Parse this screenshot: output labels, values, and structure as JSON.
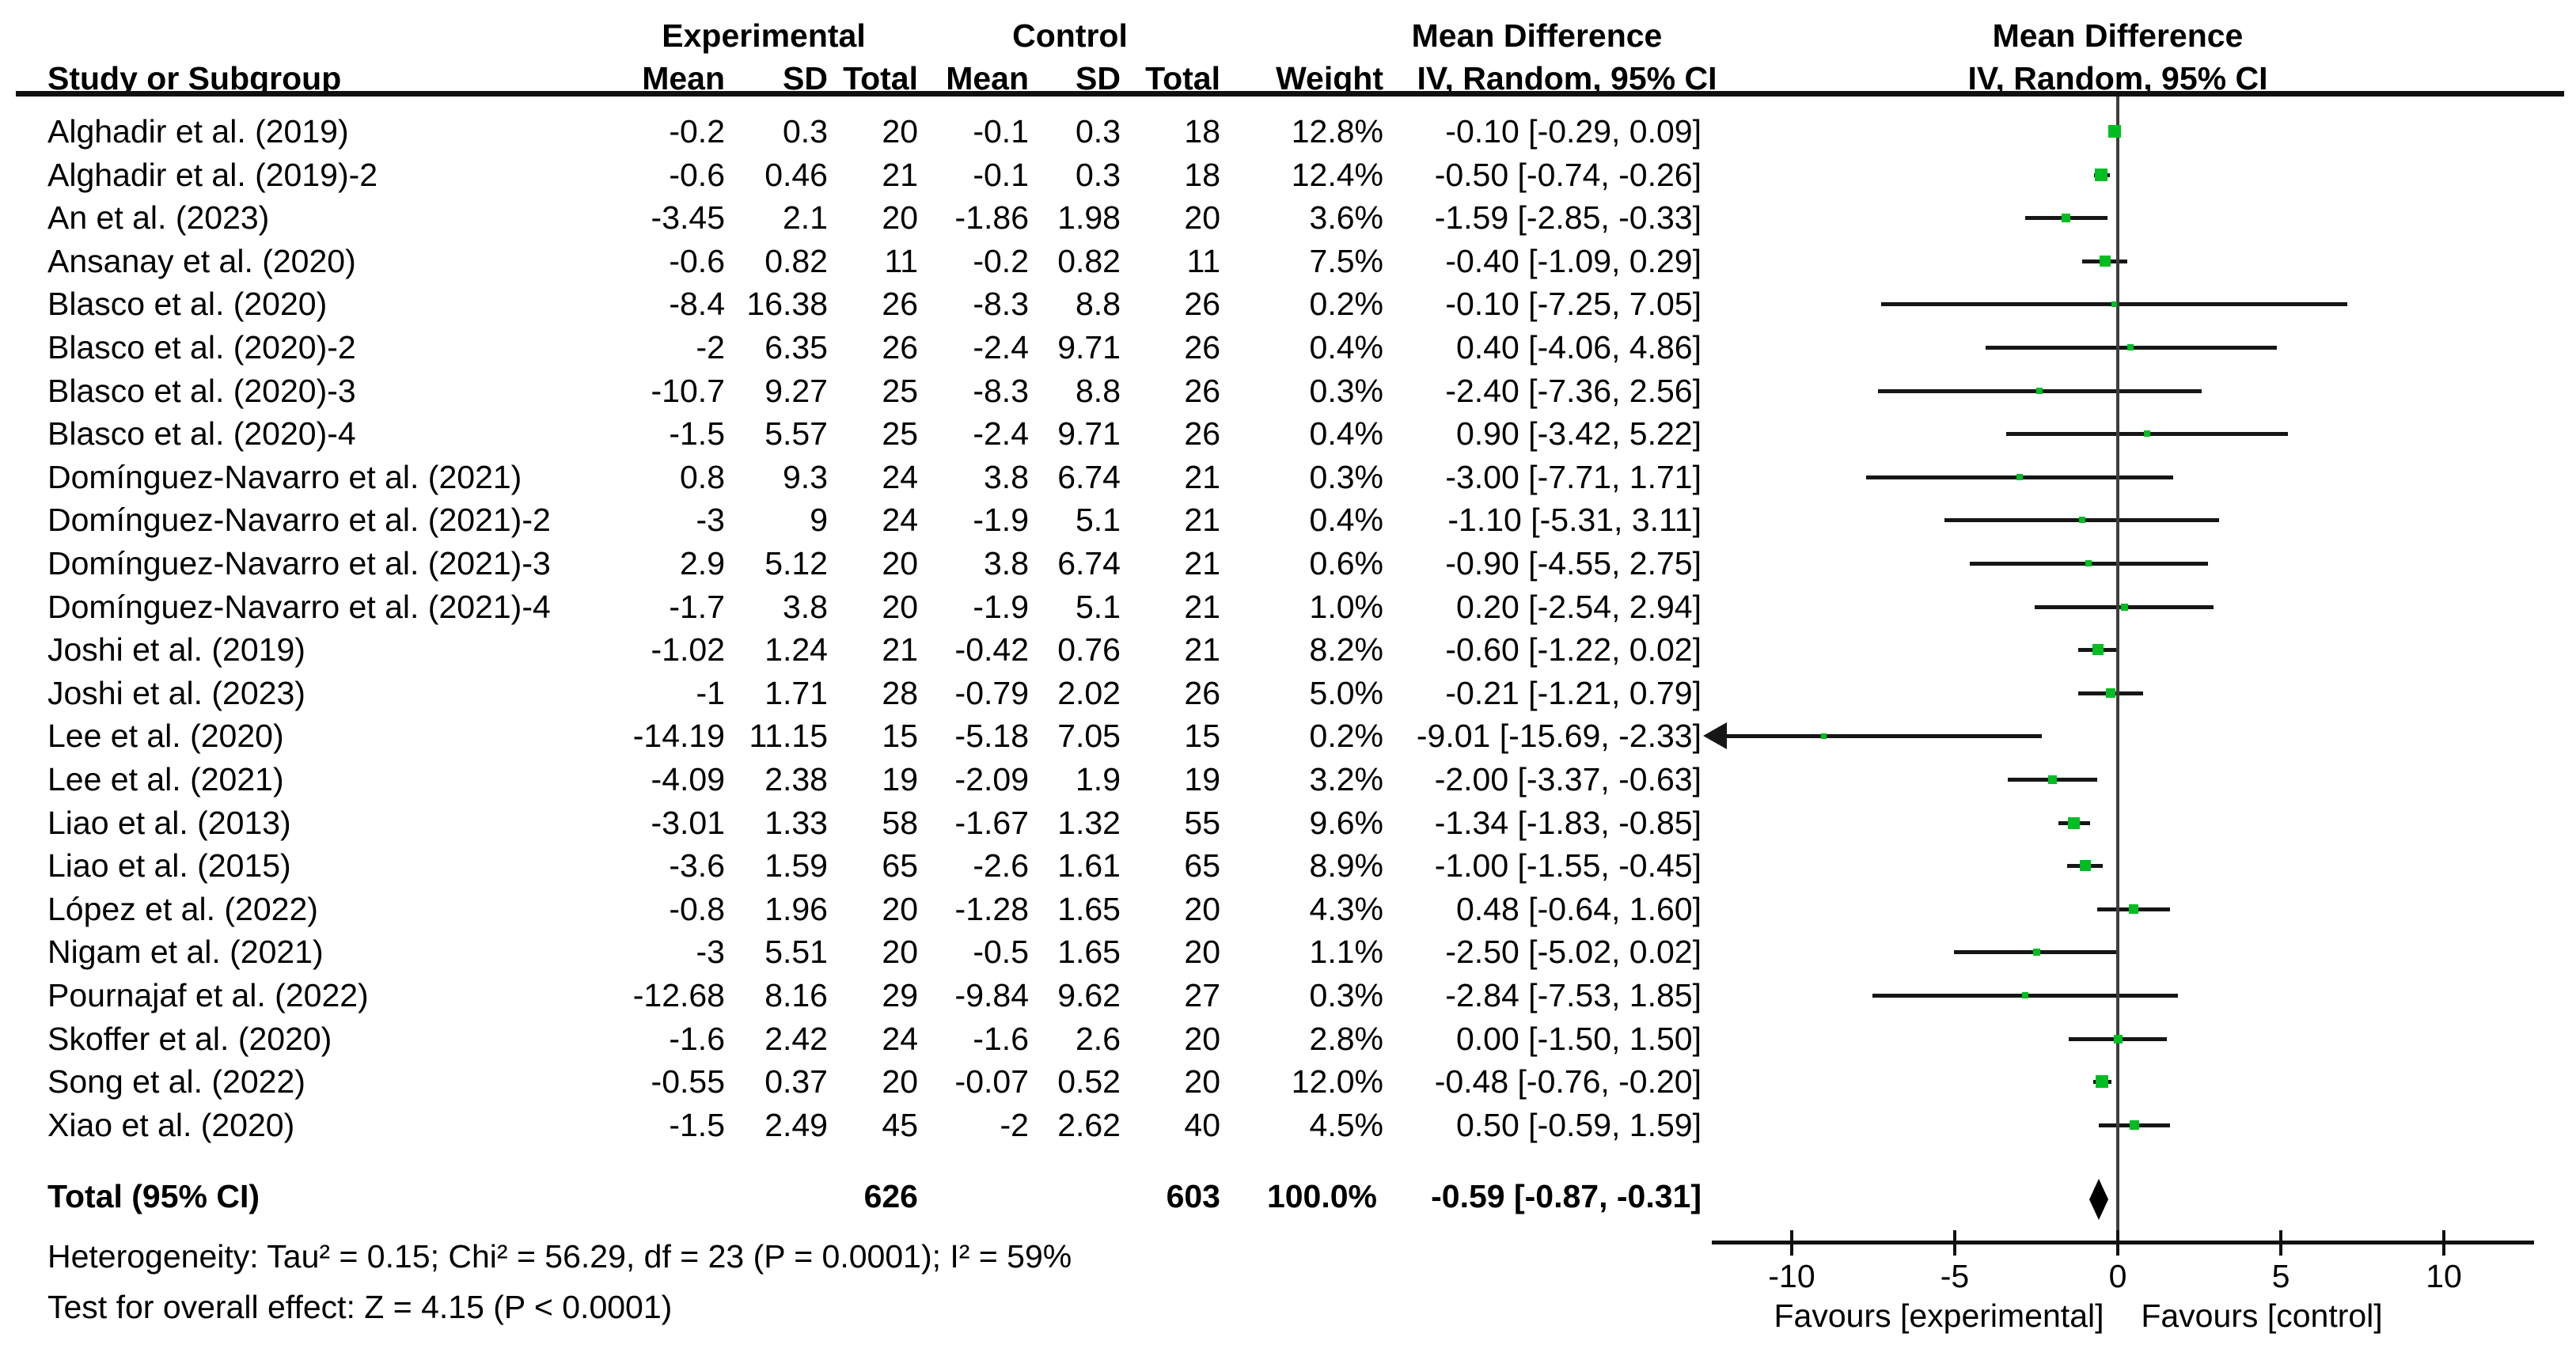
{
  "chart_data": {
    "type": "forest",
    "title_headers": {
      "experimental": "Experimental",
      "control": "Control",
      "mean_difference_left": "Mean Difference",
      "mean_difference_right": "Mean Difference",
      "study_or_subgroup": "Study or Subgroup",
      "iv_random_left": "IV, Random, 95% CI",
      "iv_random_right": "IV, Random, 95% CI"
    },
    "columns": [
      "Mean",
      "SD",
      "Total",
      "Mean",
      "SD",
      "Total",
      "Weight"
    ],
    "studies": [
      {
        "name": "Alghadir et al. (2019)",
        "mean_e": "-0.2",
        "sd_e": "0.3",
        "n_e": "20",
        "mean_c": "-0.1",
        "sd_c": "0.3",
        "n_c": "18",
        "weight": "12.8%",
        "ci_text": "-0.10 [-0.29, 0.09]",
        "md": -0.1,
        "lo": -0.29,
        "hi": 0.09
      },
      {
        "name": "Alghadir et al. (2019)-2",
        "mean_e": "-0.6",
        "sd_e": "0.46",
        "n_e": "21",
        "mean_c": "-0.1",
        "sd_c": "0.3",
        "n_c": "18",
        "weight": "12.4%",
        "ci_text": "-0.50 [-0.74, -0.26]",
        "md": -0.5,
        "lo": -0.74,
        "hi": -0.26
      },
      {
        "name": "An et al. (2023)",
        "mean_e": "-3.45",
        "sd_e": "2.1",
        "n_e": "20",
        "mean_c": "-1.86",
        "sd_c": "1.98",
        "n_c": "20",
        "weight": "3.6%",
        "ci_text": "-1.59 [-2.85, -0.33]",
        "md": -1.59,
        "lo": -2.85,
        "hi": -0.33
      },
      {
        "name": "Ansanay et al. (2020)",
        "mean_e": "-0.6",
        "sd_e": "0.82",
        "n_e": "11",
        "mean_c": "-0.2",
        "sd_c": "0.82",
        "n_c": "11",
        "weight": "7.5%",
        "ci_text": "-0.40 [-1.09, 0.29]",
        "md": -0.4,
        "lo": -1.09,
        "hi": 0.29
      },
      {
        "name": "Blasco et al. (2020)",
        "mean_e": "-8.4",
        "sd_e": "16.38",
        "n_e": "26",
        "mean_c": "-8.3",
        "sd_c": "8.8",
        "n_c": "26",
        "weight": "0.2%",
        "ci_text": "-0.10 [-7.25, 7.05]",
        "md": -0.1,
        "lo": -7.25,
        "hi": 7.05
      },
      {
        "name": "Blasco et al. (2020)-2",
        "mean_e": "-2",
        "sd_e": "6.35",
        "n_e": "26",
        "mean_c": "-2.4",
        "sd_c": "9.71",
        "n_c": "26",
        "weight": "0.4%",
        "ci_text": "0.40 [-4.06, 4.86]",
        "md": 0.4,
        "lo": -4.06,
        "hi": 4.86
      },
      {
        "name": "Blasco et al. (2020)-3",
        "mean_e": "-10.7",
        "sd_e": "9.27",
        "n_e": "25",
        "mean_c": "-8.3",
        "sd_c": "8.8",
        "n_c": "26",
        "weight": "0.3%",
        "ci_text": "-2.40 [-7.36, 2.56]",
        "md": -2.4,
        "lo": -7.36,
        "hi": 2.56
      },
      {
        "name": "Blasco et al. (2020)-4",
        "mean_e": "-1.5",
        "sd_e": "5.57",
        "n_e": "25",
        "mean_c": "-2.4",
        "sd_c": "9.71",
        "n_c": "26",
        "weight": "0.4%",
        "ci_text": "0.90 [-3.42, 5.22]",
        "md": 0.9,
        "lo": -3.42,
        "hi": 5.22
      },
      {
        "name": "Domínguez-Navarro et al. (2021)",
        "mean_e": "0.8",
        "sd_e": "9.3",
        "n_e": "24",
        "mean_c": "3.8",
        "sd_c": "6.74",
        "n_c": "21",
        "weight": "0.3%",
        "ci_text": "-3.00 [-7.71, 1.71]",
        "md": -3.0,
        "lo": -7.71,
        "hi": 1.71
      },
      {
        "name": "Domínguez-Navarro et al. (2021)-2",
        "mean_e": "-3",
        "sd_e": "9",
        "n_e": "24",
        "mean_c": "-1.9",
        "sd_c": "5.1",
        "n_c": "21",
        "weight": "0.4%",
        "ci_text": "-1.10 [-5.31, 3.11]",
        "md": -1.1,
        "lo": -5.31,
        "hi": 3.11
      },
      {
        "name": "Domínguez-Navarro et al. (2021)-3",
        "mean_e": "2.9",
        "sd_e": "5.12",
        "n_e": "20",
        "mean_c": "3.8",
        "sd_c": "6.74",
        "n_c": "21",
        "weight": "0.6%",
        "ci_text": "-0.90 [-4.55, 2.75]",
        "md": -0.9,
        "lo": -4.55,
        "hi": 2.75
      },
      {
        "name": "Domínguez-Navarro et al. (2021)-4",
        "mean_e": "-1.7",
        "sd_e": "3.8",
        "n_e": "20",
        "mean_c": "-1.9",
        "sd_c": "5.1",
        "n_c": "21",
        "weight": "1.0%",
        "ci_text": "0.20 [-2.54, 2.94]",
        "md": 0.2,
        "lo": -2.54,
        "hi": 2.94
      },
      {
        "name": "Joshi et al. (2019)",
        "mean_e": "-1.02",
        "sd_e": "1.24",
        "n_e": "21",
        "mean_c": "-0.42",
        "sd_c": "0.76",
        "n_c": "21",
        "weight": "8.2%",
        "ci_text": "-0.60 [-1.22, 0.02]",
        "md": -0.6,
        "lo": -1.22,
        "hi": 0.02
      },
      {
        "name": "Joshi et al. (2023)",
        "mean_e": "-1",
        "sd_e": "1.71",
        "n_e": "28",
        "mean_c": "-0.79",
        "sd_c": "2.02",
        "n_c": "26",
        "weight": "5.0%",
        "ci_text": "-0.21 [-1.21, 0.79]",
        "md": -0.21,
        "lo": -1.21,
        "hi": 0.79
      },
      {
        "name": "Lee et al. (2020)",
        "mean_e": "-14.19",
        "sd_e": "11.15",
        "n_e": "15",
        "mean_c": "-5.18",
        "sd_c": "7.05",
        "n_c": "15",
        "weight": "0.2%",
        "ci_text": "-9.01 [-15.69, -2.33]",
        "md": -9.01,
        "lo": -15.69,
        "hi": -2.33
      },
      {
        "name": "Lee et al. (2021)",
        "mean_e": "-4.09",
        "sd_e": "2.38",
        "n_e": "19",
        "mean_c": "-2.09",
        "sd_c": "1.9",
        "n_c": "19",
        "weight": "3.2%",
        "ci_text": "-2.00 [-3.37, -0.63]",
        "md": -2.0,
        "lo": -3.37,
        "hi": -0.63
      },
      {
        "name": "Liao et al. (2013)",
        "mean_e": "-3.01",
        "sd_e": "1.33",
        "n_e": "58",
        "mean_c": "-1.67",
        "sd_c": "1.32",
        "n_c": "55",
        "weight": "9.6%",
        "ci_text": "-1.34 [-1.83, -0.85]",
        "md": -1.34,
        "lo": -1.83,
        "hi": -0.85
      },
      {
        "name": "Liao et al. (2015)",
        "mean_e": "-3.6",
        "sd_e": "1.59",
        "n_e": "65",
        "mean_c": "-2.6",
        "sd_c": "1.61",
        "n_c": "65",
        "weight": "8.9%",
        "ci_text": "-1.00 [-1.55, -0.45]",
        "md": -1.0,
        "lo": -1.55,
        "hi": -0.45
      },
      {
        "name": "López et al. (2022)",
        "mean_e": "-0.8",
        "sd_e": "1.96",
        "n_e": "20",
        "mean_c": "-1.28",
        "sd_c": "1.65",
        "n_c": "20",
        "weight": "4.3%",
        "ci_text": "0.48 [-0.64, 1.60]",
        "md": 0.48,
        "lo": -0.64,
        "hi": 1.6
      },
      {
        "name": "Nigam et al. (2021)",
        "mean_e": "-3",
        "sd_e": "5.51",
        "n_e": "20",
        "mean_c": "-0.5",
        "sd_c": "1.65",
        "n_c": "20",
        "weight": "1.1%",
        "ci_text": "-2.50 [-5.02, 0.02]",
        "md": -2.5,
        "lo": -5.02,
        "hi": 0.02
      },
      {
        "name": "Pournajaf et al. (2022)",
        "mean_e": "-12.68",
        "sd_e": "8.16",
        "n_e": "29",
        "mean_c": "-9.84",
        "sd_c": "9.62",
        "n_c": "27",
        "weight": "0.3%",
        "ci_text": "-2.84 [-7.53, 1.85]",
        "md": -2.84,
        "lo": -7.53,
        "hi": 1.85
      },
      {
        "name": "Skoffer et al. (2020)",
        "mean_e": "-1.6",
        "sd_e": "2.42",
        "n_e": "24",
        "mean_c": "-1.6",
        "sd_c": "2.6",
        "n_c": "20",
        "weight": "2.8%",
        "ci_text": "0.00 [-1.50, 1.50]",
        "md": 0.0,
        "lo": -1.5,
        "hi": 1.5
      },
      {
        "name": "Song et al. (2022)",
        "mean_e": "-0.55",
        "sd_e": "0.37",
        "n_e": "20",
        "mean_c": "-0.07",
        "sd_c": "0.52",
        "n_c": "20",
        "weight": "12.0%",
        "ci_text": "-0.48 [-0.76, -0.20]",
        "md": -0.48,
        "lo": -0.76,
        "hi": -0.2
      },
      {
        "name": "Xiao et al. (2020)",
        "mean_e": "-1.5",
        "sd_e": "2.49",
        "n_e": "45",
        "mean_c": "-2",
        "sd_c": "2.62",
        "n_c": "40",
        "weight": "4.5%",
        "ci_text": "0.50 [-0.59, 1.59]",
        "md": 0.5,
        "lo": -0.59,
        "hi": 1.59
      }
    ],
    "total": {
      "label": "Total (95% CI)",
      "n_e": "626",
      "n_c": "603",
      "weight": "100.0%",
      "ci_text": "-0.59 [-0.87, -0.31]",
      "md": -0.59,
      "lo": -0.87,
      "hi": -0.31
    },
    "footer": {
      "heterogeneity": "Heterogeneity: Tau² = 0.15; Chi² = 56.29, df = 23 (P = 0.0001); I² = 59%",
      "overall_effect": "Test for overall effect: Z = 4.15 (P < 0.0001)"
    },
    "axis": {
      "ticks": [
        "-10",
        "-5",
        "0",
        "5",
        "10"
      ],
      "tick_values": [
        -10,
        -5,
        0,
        5,
        10
      ],
      "range": [
        -12.45,
        12.75
      ],
      "favours_left": "Favours [experimental]",
      "favours_right": "Favours [control]"
    },
    "colors": {
      "square_green": "#00bd22",
      "line_black": "#161616",
      "zero_line_gray": "#3d3d3d",
      "diamond_black": "#000000"
    }
  }
}
